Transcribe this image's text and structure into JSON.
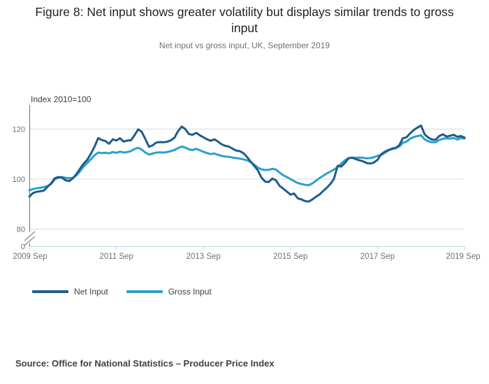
{
  "header": {
    "title": "Figure 8: Net input shows greater volatility but displays similar trends to gross input",
    "subtitle": "Net input vs gross input, UK, September 2019"
  },
  "chart_data": {
    "type": "line",
    "title": "Figure 8: Net input shows greater volatility but displays similar trends to gross input",
    "subtitle": "Net input vs gross input, UK, September 2019",
    "ylabel": "Index 2010=100",
    "xlabel": "",
    "frequency": "monthly",
    "x_start": "2009 Sep",
    "x_end": "2019 Sep",
    "x_ticklabels": [
      "2009 Sep",
      "2011 Sep",
      "2013 Sep",
      "2015 Sep",
      "2017 Sep",
      "2019 Sep"
    ],
    "x_tick_positions_months": [
      0,
      24,
      48,
      72,
      96,
      120
    ],
    "y_ticklabels": [
      "120",
      "100",
      "80",
      "0"
    ],
    "y_gridline_values": [
      120,
      100,
      80
    ],
    "ylim": [
      80,
      125
    ],
    "axis_break_between": [
      0,
      80
    ],
    "grid": "horizontal",
    "legend_position": "bottom-left",
    "series": [
      {
        "name": "Net Input",
        "color": "#1f5c8a",
        "values": [
          93.0,
          94.4,
          94.9,
          95.1,
          95.4,
          96.9,
          98.3,
          100.3,
          100.8,
          100.6,
          99.5,
          99.2,
          100.3,
          102.0,
          104.2,
          106.2,
          107.8,
          110.2,
          113.0,
          116.4,
          115.6,
          115.2,
          114.1,
          115.9,
          115.4,
          116.3,
          115.0,
          115.4,
          115.5,
          117.5,
          119.9,
          118.9,
          116.0,
          112.9,
          113.5,
          114.6,
          114.8,
          114.7,
          114.9,
          115.5,
          116.5,
          119.2,
          121.0,
          120.0,
          118.0,
          117.7,
          118.5,
          117.5,
          116.7,
          115.9,
          115.3,
          115.9,
          115.0,
          113.9,
          113.3,
          113.0,
          112.2,
          111.4,
          111.2,
          110.4,
          108.9,
          107.0,
          105.3,
          103.5,
          100.6,
          99.0,
          98.8,
          100.2,
          99.5,
          97.3,
          96.2,
          95.0,
          93.8,
          94.2,
          92.3,
          91.9,
          91.2,
          91.0,
          91.8,
          92.9,
          93.8,
          95.2,
          96.5,
          98.0,
          100.1,
          105.3,
          105.0,
          106.4,
          108.3,
          108.5,
          108.0,
          107.5,
          107.1,
          106.4,
          106.2,
          106.6,
          107.7,
          109.9,
          110.9,
          111.6,
          112.0,
          112.4,
          113.5,
          116.3,
          116.7,
          118.3,
          119.6,
          120.6,
          121.4,
          117.9,
          116.6,
          115.8,
          115.7,
          117.2,
          117.9,
          117.0,
          117.3,
          117.7,
          116.9,
          117.2,
          116.6
        ]
      },
      {
        "name": "Gross Input",
        "color": "#2aa1cd",
        "values": [
          95.5,
          96.0,
          96.3,
          96.5,
          96.8,
          97.2,
          98.0,
          99.8,
          100.6,
          100.8,
          100.5,
          100.3,
          100.5,
          101.5,
          103.2,
          105.0,
          106.5,
          108.0,
          109.5,
          110.6,
          110.4,
          110.5,
          110.3,
          110.8,
          110.5,
          111.0,
          110.6,
          110.8,
          111.2,
          112.0,
          112.5,
          111.8,
          110.6,
          109.8,
          110.2,
          110.6,
          110.7,
          110.6,
          110.8,
          111.2,
          111.6,
          112.4,
          113.0,
          112.6,
          111.9,
          111.6,
          112.1,
          111.5,
          110.9,
          110.4,
          110.0,
          110.2,
          109.7,
          109.3,
          109.0,
          108.9,
          108.6,
          108.4,
          108.2,
          107.9,
          107.5,
          106.8,
          105.8,
          104.6,
          103.9,
          103.6,
          103.7,
          104.1,
          103.8,
          102.6,
          101.5,
          100.8,
          100.0,
          99.2,
          98.4,
          98.0,
          97.7,
          97.5,
          98.2,
          99.3,
          100.4,
          101.3,
          102.2,
          103.0,
          103.8,
          104.8,
          106.2,
          107.5,
          108.4,
          108.6,
          108.5,
          108.6,
          108.5,
          108.3,
          108.4,
          108.7,
          109.3,
          109.6,
          110.5,
          111.4,
          112.3,
          112.5,
          113.0,
          114.5,
          115.0,
          116.1,
          116.8,
          117.2,
          117.5,
          115.9,
          115.1,
          114.7,
          114.7,
          115.6,
          116.1,
          116.3,
          116.2,
          116.4,
          115.8,
          116.4,
          116.2
        ]
      }
    ]
  },
  "footer": {
    "source": "Source: Office for National Statistics – Producer Price Index"
  }
}
